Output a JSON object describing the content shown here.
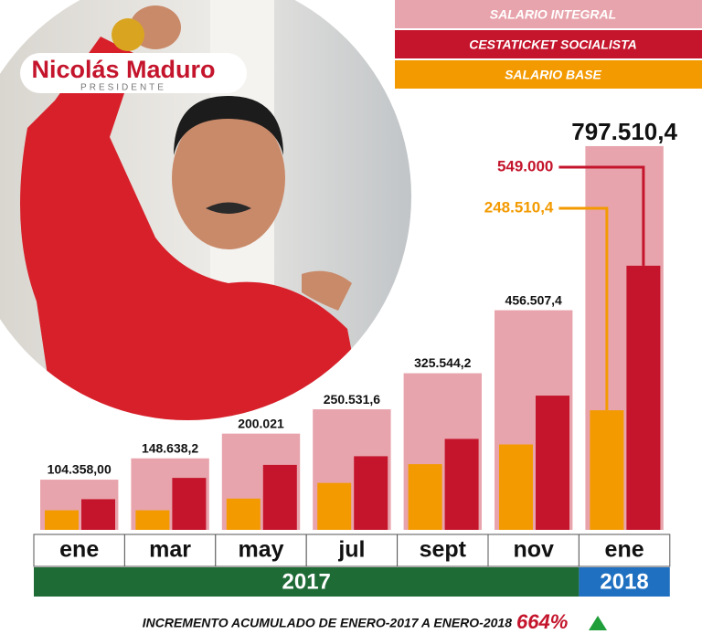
{
  "logo": {
    "name": "Nicolás Maduro",
    "role": "PRESIDENTE"
  },
  "chart_data": {
    "type": "bar",
    "categories": [
      "ene",
      "mar",
      "may",
      "jul",
      "sept",
      "nov",
      "ene"
    ],
    "groups": [
      {
        "label": "2017",
        "count": 6,
        "color": "#1f6b36"
      },
      {
        "label": "2018",
        "count": 1,
        "color": "#1f70c1"
      }
    ],
    "series": [
      {
        "name": "SALARIO INTEGRAL",
        "color": "#e8a4ac",
        "values": [
          104358.0,
          148638.2,
          200021,
          250531.6,
          325544.2,
          456507.4,
          797510.4
        ],
        "value_labels": [
          "104.358,00",
          "148.638,2",
          "200.021",
          "250.531,6",
          "325.544,2",
          "456.507,4",
          "797.510,4"
        ]
      },
      {
        "name": "CESTATICKET SOCIALISTA",
        "color": "#c4152c",
        "values": [
          63720,
          108000,
          135000,
          153000,
          189000,
          279000,
          549000
        ],
        "value_labels": [
          null,
          null,
          null,
          null,
          null,
          null,
          "549.000"
        ]
      },
      {
        "name": "SALARIO BASE",
        "color": "#f39a00",
        "values": [
          40638,
          40638.15,
          65021,
          97531.6,
          136544.2,
          177507.4,
          248510.4
        ],
        "value_labels": [
          null,
          null,
          null,
          null,
          null,
          null,
          "248.510,4"
        ]
      }
    ],
    "ylim": [
      0,
      900000
    ]
  },
  "footer": {
    "text": "INCREMENTO ACUMULADO DE ENERO-2017 A ENERO-2018",
    "value": "664%"
  }
}
